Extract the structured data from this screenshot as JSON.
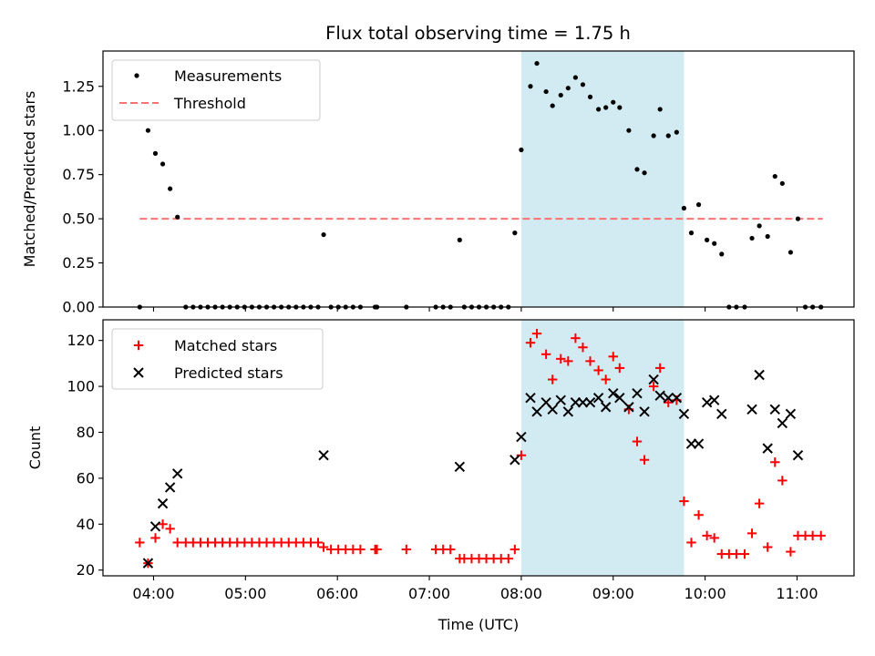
{
  "figure": {
    "title": "Flux total observing time = 1.75 h",
    "xlabel": "Time (UTC)",
    "x_tick_labels": [
      "04:00",
      "05:00",
      "06:00",
      "07:00",
      "08:00",
      "09:00",
      "10:00",
      "11:00"
    ]
  },
  "chart_data": [
    {
      "type": "scatter",
      "panel": "top",
      "ylabel": "Matched/Predicted stars",
      "ylim": [
        0,
        1.45
      ],
      "y_tick_labels": [
        "0.00",
        "0.25",
        "0.50",
        "0.75",
        "1.00",
        "1.25"
      ],
      "x_axis": "time (hours UTC)",
      "xlim": [
        3.45,
        11.62
      ],
      "highlight_span": {
        "x": [
          8.0,
          9.77
        ],
        "color": "#add8e6"
      },
      "legend": {
        "placement": "upper-left",
        "entries": [
          "Measurements",
          "Threshold"
        ]
      },
      "series": [
        {
          "name": "Measurements",
          "marker": "dot",
          "color": "#000000",
          "points": [
            [
              3.85,
              0.0
            ],
            [
              3.94,
              1.0
            ],
            [
              4.02,
              0.87
            ],
            [
              4.1,
              0.81
            ],
            [
              4.18,
              0.67
            ],
            [
              4.26,
              0.51
            ],
            [
              4.35,
              0.0
            ],
            [
              4.43,
              0.0
            ],
            [
              4.51,
              0.0
            ],
            [
              4.59,
              0.0
            ],
            [
              4.67,
              0.0
            ],
            [
              4.75,
              0.0
            ],
            [
              4.83,
              0.0
            ],
            [
              4.91,
              0.0
            ],
            [
              4.99,
              0.0
            ],
            [
              5.07,
              0.0
            ],
            [
              5.15,
              0.0
            ],
            [
              5.23,
              0.0
            ],
            [
              5.31,
              0.0
            ],
            [
              5.39,
              0.0
            ],
            [
              5.47,
              0.0
            ],
            [
              5.55,
              0.0
            ],
            [
              5.63,
              0.0
            ],
            [
              5.71,
              0.0
            ],
            [
              5.79,
              0.0
            ],
            [
              5.85,
              0.41
            ],
            [
              5.93,
              0.0
            ],
            [
              6.01,
              0.0
            ],
            [
              6.09,
              0.0
            ],
            [
              6.17,
              0.0
            ],
            [
              6.25,
              0.0
            ],
            [
              6.41,
              0.0
            ],
            [
              6.43,
              0.0
            ],
            [
              6.75,
              0.0
            ],
            [
              7.07,
              0.0
            ],
            [
              7.15,
              0.0
            ],
            [
              7.23,
              0.0
            ],
            [
              7.33,
              0.38
            ],
            [
              7.38,
              0.0
            ],
            [
              7.46,
              0.0
            ],
            [
              7.54,
              0.0
            ],
            [
              7.62,
              0.0
            ],
            [
              7.7,
              0.0
            ],
            [
              7.78,
              0.0
            ],
            [
              7.86,
              0.0
            ],
            [
              7.93,
              0.42
            ],
            [
              8.0,
              0.89
            ],
            [
              8.1,
              1.25
            ],
            [
              8.17,
              1.38
            ],
            [
              8.27,
              1.22
            ],
            [
              8.34,
              1.14
            ],
            [
              8.43,
              1.2
            ],
            [
              8.51,
              1.24
            ],
            [
              8.59,
              1.3
            ],
            [
              8.67,
              1.26
            ],
            [
              8.75,
              1.19
            ],
            [
              8.84,
              1.12
            ],
            [
              8.92,
              1.13
            ],
            [
              9.0,
              1.16
            ],
            [
              9.07,
              1.13
            ],
            [
              9.17,
              1.0
            ],
            [
              9.26,
              0.78
            ],
            [
              9.34,
              0.76
            ],
            [
              9.44,
              0.97
            ],
            [
              9.51,
              1.12
            ],
            [
              9.6,
              0.97
            ],
            [
              9.69,
              0.99
            ],
            [
              9.77,
              0.56
            ],
            [
              9.85,
              0.42
            ],
            [
              9.93,
              0.58
            ],
            [
              10.02,
              0.38
            ],
            [
              10.1,
              0.36
            ],
            [
              10.18,
              0.3
            ],
            [
              10.26,
              0.0
            ],
            [
              10.34,
              0.0
            ],
            [
              10.43,
              0.0
            ],
            [
              10.51,
              0.39
            ],
            [
              10.59,
              0.46
            ],
            [
              10.68,
              0.4
            ],
            [
              10.76,
              0.74
            ],
            [
              10.84,
              0.7
            ],
            [
              10.93,
              0.31
            ],
            [
              11.01,
              0.5
            ],
            [
              11.09,
              0.0
            ],
            [
              11.17,
              0.0
            ],
            [
              11.26,
              0.0
            ]
          ]
        },
        {
          "name": "Threshold",
          "marker": "dashed-line",
          "color": "#ff7070",
          "points": [
            [
              3.85,
              0.5
            ],
            [
              11.28,
              0.5
            ]
          ]
        }
      ]
    },
    {
      "type": "scatter",
      "panel": "bottom",
      "ylabel": "Count",
      "ylim": [
        17.5,
        129
      ],
      "y_tick_labels": [
        "20",
        "40",
        "60",
        "80",
        "100",
        "120"
      ],
      "y_ticks": [
        20,
        40,
        60,
        80,
        100,
        120
      ],
      "x_axis": "time (hours UTC)",
      "xlim": [
        3.45,
        11.62
      ],
      "highlight_span": {
        "x": [
          8.0,
          9.77
        ],
        "color": "#add8e6"
      },
      "legend": {
        "placement": "upper-left",
        "entries": [
          "Matched stars",
          "Predicted stars"
        ]
      },
      "series": [
        {
          "name": "Matched stars",
          "marker": "plus",
          "color": "#ff0000",
          "points": [
            [
              3.85,
              32
            ],
            [
              3.94,
              23
            ],
            [
              4.02,
              34
            ],
            [
              4.1,
              40
            ],
            [
              4.18,
              38
            ],
            [
              4.26,
              32
            ],
            [
              4.35,
              32
            ],
            [
              4.43,
              32
            ],
            [
              4.51,
              32
            ],
            [
              4.59,
              32
            ],
            [
              4.67,
              32
            ],
            [
              4.75,
              32
            ],
            [
              4.83,
              32
            ],
            [
              4.91,
              32
            ],
            [
              4.99,
              32
            ],
            [
              5.07,
              32
            ],
            [
              5.15,
              32
            ],
            [
              5.23,
              32
            ],
            [
              5.31,
              32
            ],
            [
              5.39,
              32
            ],
            [
              5.47,
              32
            ],
            [
              5.55,
              32
            ],
            [
              5.63,
              32
            ],
            [
              5.71,
              32
            ],
            [
              5.79,
              32
            ],
            [
              5.85,
              30
            ],
            [
              5.93,
              29
            ],
            [
              6.01,
              29
            ],
            [
              6.09,
              29
            ],
            [
              6.17,
              29
            ],
            [
              6.25,
              29
            ],
            [
              6.41,
              29
            ],
            [
              6.43,
              29
            ],
            [
              6.75,
              29
            ],
            [
              7.07,
              29
            ],
            [
              7.15,
              29
            ],
            [
              7.23,
              29
            ],
            [
              7.33,
              25
            ],
            [
              7.38,
              25
            ],
            [
              7.46,
              25
            ],
            [
              7.54,
              25
            ],
            [
              7.62,
              25
            ],
            [
              7.7,
              25
            ],
            [
              7.78,
              25
            ],
            [
              7.86,
              25
            ],
            [
              7.93,
              29
            ],
            [
              8.0,
              70
            ],
            [
              8.1,
              119
            ],
            [
              8.17,
              123
            ],
            [
              8.27,
              114
            ],
            [
              8.34,
              103
            ],
            [
              8.43,
              112
            ],
            [
              8.51,
              111
            ],
            [
              8.59,
              121
            ],
            [
              8.67,
              117
            ],
            [
              8.75,
              111
            ],
            [
              8.84,
              107
            ],
            [
              8.92,
              103
            ],
            [
              9.0,
              113
            ],
            [
              9.07,
              108
            ],
            [
              9.17,
              90
            ],
            [
              9.26,
              76
            ],
            [
              9.34,
              68
            ],
            [
              9.44,
              100
            ],
            [
              9.51,
              108
            ],
            [
              9.6,
              93
            ],
            [
              9.69,
              94
            ],
            [
              9.77,
              50
            ],
            [
              9.85,
              32
            ],
            [
              9.93,
              44
            ],
            [
              10.02,
              35
            ],
            [
              10.1,
              34
            ],
            [
              10.18,
              27
            ],
            [
              10.26,
              27
            ],
            [
              10.34,
              27
            ],
            [
              10.43,
              27
            ],
            [
              10.51,
              36
            ],
            [
              10.59,
              49
            ],
            [
              10.68,
              30
            ],
            [
              10.76,
              67
            ],
            [
              10.84,
              59
            ],
            [
              10.93,
              28
            ],
            [
              11.01,
              35
            ],
            [
              11.09,
              35
            ],
            [
              11.17,
              35
            ],
            [
              11.26,
              35
            ]
          ]
        },
        {
          "name": "Predicted stars",
          "marker": "x",
          "color": "#000000",
          "points": [
            [
              3.94,
              23
            ],
            [
              4.02,
              39
            ],
            [
              4.1,
              49
            ],
            [
              4.18,
              56
            ],
            [
              4.26,
              62
            ],
            [
              5.85,
              70
            ],
            [
              7.33,
              65
            ],
            [
              7.93,
              68
            ],
            [
              8.0,
              78
            ],
            [
              8.1,
              95
            ],
            [
              8.17,
              89
            ],
            [
              8.27,
              93
            ],
            [
              8.34,
              90
            ],
            [
              8.43,
              94
            ],
            [
              8.51,
              89
            ],
            [
              8.59,
              93
            ],
            [
              8.67,
              93
            ],
            [
              8.75,
              93
            ],
            [
              8.84,
              95
            ],
            [
              8.92,
              91
            ],
            [
              9.0,
              97
            ],
            [
              9.07,
              95
            ],
            [
              9.17,
              91
            ],
            [
              9.26,
              97
            ],
            [
              9.34,
              89
            ],
            [
              9.44,
              103
            ],
            [
              9.51,
              96
            ],
            [
              9.6,
              95
            ],
            [
              9.69,
              95
            ],
            [
              9.77,
              88
            ],
            [
              9.85,
              75
            ],
            [
              9.93,
              75
            ],
            [
              10.02,
              93
            ],
            [
              10.1,
              94
            ],
            [
              10.18,
              88
            ],
            [
              10.51,
              90
            ],
            [
              10.59,
              105
            ],
            [
              10.68,
              73
            ],
            [
              10.76,
              90
            ],
            [
              10.84,
              84
            ],
            [
              10.93,
              88
            ],
            [
              11.01,
              70
            ]
          ]
        }
      ]
    }
  ]
}
